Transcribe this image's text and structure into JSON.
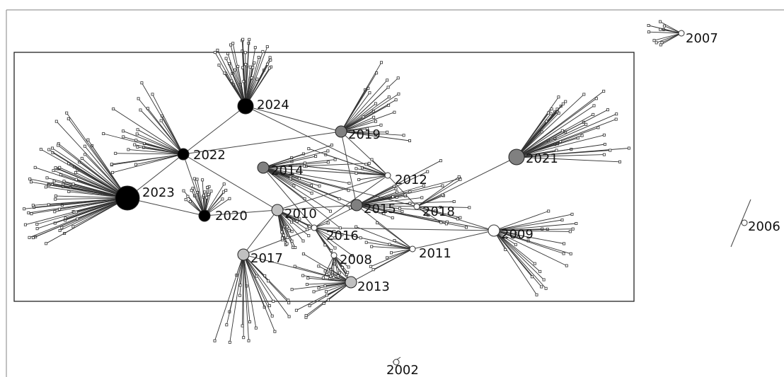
{
  "network": {
    "nodes": [
      {
        "year": "2023",
        "fill": "#000000",
        "size": "large"
      },
      {
        "year": "2024",
        "fill": "#000000",
        "size": "medium"
      },
      {
        "year": "2022",
        "fill": "#000000",
        "size": "small"
      },
      {
        "year": "2020",
        "fill": "#000000",
        "size": "small"
      },
      {
        "year": "2021",
        "fill": "#808080",
        "size": "medium"
      },
      {
        "year": "2019",
        "fill": "#808080",
        "size": "small"
      },
      {
        "year": "2014",
        "fill": "#808080",
        "size": "small"
      },
      {
        "year": "2015",
        "fill": "#808080",
        "size": "small"
      },
      {
        "year": "2017",
        "fill": "#c0c0c0",
        "size": "small"
      },
      {
        "year": "2013",
        "fill": "#c0c0c0",
        "size": "small"
      },
      {
        "year": "2010",
        "fill": "#c0c0c0",
        "size": "small"
      },
      {
        "year": "2016",
        "fill": "#ffffff",
        "size": "tiny"
      },
      {
        "year": "2008",
        "fill": "#ffffff",
        "size": "tiny"
      },
      {
        "year": "2012",
        "fill": "#ffffff",
        "size": "tiny"
      },
      {
        "year": "2018",
        "fill": "#ffffff",
        "size": "tiny"
      },
      {
        "year": "2011",
        "fill": "#ffffff",
        "size": "tiny"
      },
      {
        "year": "2009",
        "fill": "#ffffff",
        "size": "small"
      },
      {
        "year": "2007",
        "fill": "#ffffff",
        "size": "tiny"
      },
      {
        "year": "2006",
        "fill": "#ffffff",
        "size": "tiny"
      },
      {
        "year": "2002",
        "fill": "#ffffff",
        "size": "tiny"
      }
    ]
  }
}
